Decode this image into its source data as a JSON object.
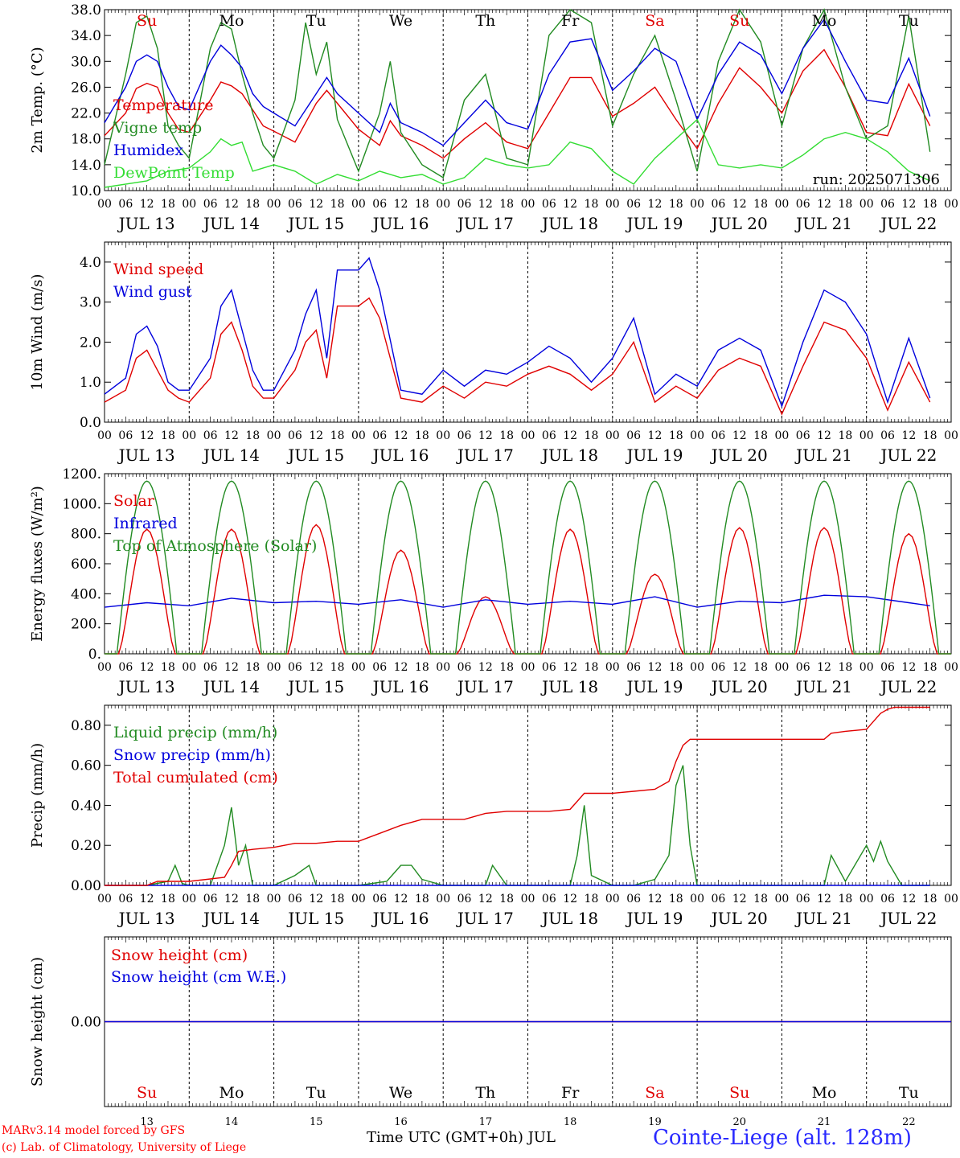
{
  "days": {
    "short": [
      "Su",
      "Mo",
      "Tu",
      "We",
      "Th",
      "Fr",
      "Sa",
      "Su",
      "Mo",
      "Tu"
    ],
    "colors": [
      "#e00000",
      "#000000",
      "#000000",
      "#000000",
      "#000000",
      "#000000",
      "#e00000",
      "#e00000",
      "#000000",
      "#000000"
    ],
    "dates": [
      "JUL 13",
      "JUL 14",
      "JUL 15",
      "JUL 16",
      "JUL 17",
      "JUL 18",
      "JUL 19",
      "JUL 20",
      "JUL 21",
      "JUL 22"
    ],
    "numbers": [
      "13",
      "14",
      "15",
      "16",
      "17",
      "18",
      "19",
      "20",
      "21",
      "22"
    ],
    "hour_labels": [
      "00",
      "06",
      "12",
      "18"
    ],
    "final_hour_label": "00"
  },
  "footer": {
    "model": "MARv3.14 model forced by GFS",
    "lab": "(c) Lab. of Climatology, University of Liege",
    "time_axis": "Time UTC (GMT+0h) JUL",
    "station": "Cointe-Liege (alt. 128m)"
  },
  "chart_data": [
    {
      "type": "line",
      "ylabel": "2m Temp. (°C)",
      "ylim": [
        10,
        38
      ],
      "yticks": [
        "10.0",
        "14.0",
        "18.0",
        "22.0",
        "26.0",
        "30.0",
        "34.0",
        "38.0"
      ],
      "annotation": "run: 2025071306",
      "x_unit": "hours since 2025-07-13 00 UTC",
      "series": [
        {
          "name": "Temperature",
          "color": "#e00000",
          "x": [
            0,
            6,
            9,
            12,
            15,
            18,
            21,
            24,
            30,
            33,
            36,
            39,
            42,
            45,
            48,
            54,
            60,
            63,
            66,
            72,
            78,
            81,
            84,
            90,
            96,
            102,
            108,
            114,
            120,
            126,
            132,
            138,
            144,
            150,
            156,
            162,
            168,
            174,
            180,
            186,
            192,
            198,
            204,
            210,
            216,
            222,
            228,
            234
          ],
          "y": [
            18.5,
            22,
            25.8,
            26.6,
            26,
            22,
            19.5,
            19,
            24,
            26.8,
            26.2,
            25,
            22.5,
            20,
            19.2,
            17.5,
            23.5,
            25.5,
            23.5,
            19.5,
            17,
            20.8,
            18.5,
            17,
            15,
            18,
            20.5,
            17.5,
            16.5,
            22,
            27.5,
            27.5,
            21.5,
            23.5,
            26,
            21,
            16.5,
            23.5,
            29,
            26,
            22,
            28.5,
            31.8,
            26,
            19,
            18.5,
            26.5,
            20
          ]
        },
        {
          "name": "Vigne temp",
          "color": "#228b22",
          "x": [
            0,
            6,
            9,
            12,
            15,
            18,
            21,
            24,
            30,
            33,
            36,
            39,
            42,
            45,
            48,
            54,
            57,
            60,
            63,
            66,
            72,
            78,
            81,
            84,
            90,
            96,
            102,
            108,
            114,
            120,
            126,
            132,
            138,
            144,
            150,
            156,
            162,
            168,
            174,
            180,
            186,
            192,
            198,
            204,
            210,
            216,
            222,
            228,
            234
          ],
          "y": [
            14,
            28,
            36,
            37,
            32,
            20,
            17,
            15,
            32,
            36,
            35,
            28,
            22,
            17,
            15,
            24,
            36,
            28,
            33,
            21,
            13,
            22,
            30,
            19,
            14,
            12,
            24,
            28,
            15,
            14,
            34,
            38,
            36,
            20,
            28,
            34,
            24,
            13,
            30,
            38,
            33,
            20,
            32,
            38,
            26,
            18,
            20,
            37,
            16
          ]
        },
        {
          "name": "Humidex",
          "color": "#0000dd",
          "x": [
            0,
            6,
            9,
            12,
            15,
            18,
            21,
            24,
            30,
            33,
            36,
            39,
            42,
            45,
            48,
            54,
            60,
            63,
            66,
            72,
            78,
            81,
            84,
            90,
            96,
            102,
            108,
            114,
            120,
            126,
            132,
            138,
            144,
            150,
            156,
            162,
            168,
            174,
            180,
            186,
            192,
            198,
            204,
            210,
            216,
            222,
            228,
            234
          ],
          "y": [
            20.5,
            26,
            30,
            31,
            30,
            26,
            23,
            22.5,
            30,
            32.5,
            31,
            29,
            25,
            23,
            22,
            20,
            25,
            27.5,
            25,
            22,
            19,
            23.5,
            20.5,
            19,
            17,
            20.5,
            24,
            20.5,
            19.5,
            28,
            33,
            33.5,
            25.5,
            28.5,
            32,
            30,
            21,
            28,
            33,
            31,
            25,
            32,
            36.5,
            30,
            24,
            23.5,
            30.5,
            21.5
          ]
        },
        {
          "name": "DewPoint Temp",
          "color": "#33dd33",
          "x": [
            0,
            12,
            18,
            24,
            30,
            33,
            36,
            39,
            42,
            48,
            54,
            60,
            66,
            72,
            78,
            84,
            90,
            96,
            102,
            108,
            114,
            120,
            126,
            132,
            138,
            144,
            150,
            156,
            162,
            168,
            174,
            180,
            186,
            192,
            198,
            204,
            210,
            216,
            222,
            228,
            234
          ],
          "y": [
            10.5,
            11.5,
            13,
            13.5,
            16,
            18,
            17,
            17.5,
            13,
            14,
            13,
            11,
            12.5,
            11.5,
            13,
            12,
            12.5,
            11,
            12,
            15,
            14,
            13.5,
            14,
            17.5,
            16.5,
            13,
            11,
            15,
            18,
            21,
            14,
            13.5,
            14,
            13.5,
            15.5,
            18,
            19,
            18,
            16,
            13,
            11.5
          ]
        }
      ]
    },
    {
      "type": "line",
      "ylabel": "10m Wind (m/s)",
      "ylim": [
        0,
        4.5
      ],
      "yticks": [
        "0.0",
        "1.0",
        "2.0",
        "3.0",
        "4.0"
      ],
      "x_unit": "hours since 2025-07-13 00 UTC",
      "series": [
        {
          "name": "Wind speed",
          "color": "#e00000",
          "x": [
            0,
            6,
            9,
            12,
            15,
            18,
            21,
            24,
            30,
            33,
            36,
            39,
            42,
            45,
            48,
            54,
            57,
            60,
            63,
            66,
            72,
            75,
            78,
            84,
            90,
            96,
            102,
            108,
            114,
            120,
            126,
            132,
            138,
            144,
            150,
            156,
            162,
            168,
            174,
            180,
            186,
            192,
            198,
            204,
            210,
            216,
            222,
            228,
            234
          ],
          "y": [
            0.5,
            0.8,
            1.6,
            1.8,
            1.3,
            0.8,
            0.6,
            0.5,
            1.1,
            2.2,
            2.5,
            1.8,
            0.9,
            0.6,
            0.6,
            1.3,
            2.0,
            2.3,
            1.1,
            2.9,
            2.9,
            3.1,
            2.6,
            0.6,
            0.5,
            0.9,
            0.6,
            1.0,
            0.9,
            1.2,
            1.4,
            1.2,
            0.8,
            1.2,
            2.0,
            0.5,
            0.9,
            0.6,
            1.3,
            1.6,
            1.4,
            0.2,
            1.4,
            2.5,
            2.3,
            1.6,
            0.3,
            1.5,
            0.5
          ]
        },
        {
          "name": "Wind gust",
          "color": "#0000dd",
          "x": [
            0,
            6,
            9,
            12,
            15,
            18,
            21,
            24,
            30,
            33,
            36,
            39,
            42,
            45,
            48,
            54,
            57,
            60,
            63,
            66,
            72,
            75,
            78,
            84,
            90,
            96,
            102,
            108,
            114,
            120,
            126,
            132,
            138,
            144,
            150,
            156,
            162,
            168,
            174,
            180,
            186,
            192,
            198,
            204,
            210,
            216,
            222,
            228,
            234
          ],
          "y": [
            0.7,
            1.1,
            2.2,
            2.4,
            1.9,
            1.0,
            0.8,
            0.8,
            1.6,
            2.9,
            3.3,
            2.3,
            1.3,
            0.8,
            0.8,
            1.8,
            2.7,
            3.3,
            1.6,
            3.8,
            3.8,
            4.1,
            3.3,
            0.8,
            0.7,
            1.3,
            0.9,
            1.3,
            1.2,
            1.5,
            1.9,
            1.6,
            1.0,
            1.6,
            2.6,
            0.7,
            1.2,
            0.9,
            1.8,
            2.1,
            1.8,
            0.4,
            2.0,
            3.3,
            3.0,
            2.2,
            0.5,
            2.1,
            0.6
          ]
        }
      ]
    },
    {
      "type": "line",
      "ylabel": "Energy fluxes (W/m²)",
      "ylim": [
        0,
        1200
      ],
      "yticks": [
        "0.",
        "200.",
        "400.",
        "600.",
        "800.",
        "1000.",
        "1200."
      ],
      "x_unit": "hours since 2025-07-13 00 UTC",
      "series": [
        {
          "name": "Solar",
          "color": "#e00000",
          "peaks": [
            830,
            830,
            860,
            690,
            380,
            830,
            530,
            840,
            840,
            800
          ]
        },
        {
          "name": "Infrared",
          "color": "#0000dd",
          "x": [
            0,
            12,
            24,
            36,
            48,
            60,
            72,
            84,
            96,
            108,
            120,
            132,
            144,
            156,
            168,
            180,
            192,
            204,
            216,
            228,
            234
          ],
          "y": [
            310,
            340,
            320,
            370,
            340,
            350,
            330,
            360,
            310,
            360,
            330,
            350,
            330,
            380,
            310,
            350,
            340,
            390,
            380,
            340,
            320
          ]
        },
        {
          "name": "Top of Atmosphere (Solar)",
          "color": "#228b22",
          "peak": 1150
        }
      ]
    },
    {
      "type": "line",
      "ylabel": "Precip (mm/h)",
      "ylim": [
        0,
        0.9
      ],
      "yticks": [
        "0.00",
        "0.20",
        "0.40",
        "0.60",
        "0.80"
      ],
      "x_unit": "hours since 2025-07-13 00 UTC",
      "series": [
        {
          "name": "Liquid precip (mm/h)",
          "color": "#228b22",
          "x": [
            0,
            12,
            18,
            20,
            22,
            24,
            30,
            34,
            36,
            38,
            40,
            42,
            48,
            54,
            58,
            60,
            62,
            66,
            72,
            80,
            84,
            87,
            90,
            96,
            102,
            108,
            110,
            114,
            120,
            132,
            134,
            136,
            138,
            144,
            150,
            156,
            160,
            162,
            164,
            166,
            168,
            174,
            180,
            192,
            204,
            206,
            210,
            216,
            218,
            220,
            222,
            226,
            234
          ],
          "y": [
            0,
            0,
            0.02,
            0.1,
            0.01,
            0,
            0,
            0.2,
            0.39,
            0.1,
            0.2,
            0,
            0,
            0.05,
            0.1,
            0,
            0,
            0,
            0,
            0.02,
            0.1,
            0.1,
            0.03,
            0,
            0,
            0,
            0.1,
            0,
            0,
            0,
            0.15,
            0.4,
            0.05,
            0,
            0,
            0.03,
            0.15,
            0.5,
            0.6,
            0.2,
            0,
            0,
            0,
            0,
            0,
            0.15,
            0.02,
            0.2,
            0.12,
            0.22,
            0.12,
            0,
            0
          ]
        },
        {
          "name": "Snow precip (mm/h)",
          "color": "#0000dd",
          "x": [
            0,
            234
          ],
          "y": [
            0,
            0
          ]
        },
        {
          "name": "Total cumulated (cm)",
          "color": "#e00000",
          "x": [
            0,
            12,
            15,
            24,
            34,
            36,
            38,
            42,
            48,
            54,
            60,
            66,
            72,
            78,
            84,
            90,
            96,
            102,
            108,
            114,
            120,
            126,
            132,
            134,
            136,
            140,
            144,
            150,
            156,
            160,
            162,
            164,
            166,
            168,
            174,
            180,
            192,
            204,
            206,
            210,
            216,
            218,
            220,
            222,
            224,
            234
          ],
          "y": [
            0,
            0,
            0.02,
            0.02,
            0.04,
            0.1,
            0.17,
            0.18,
            0.19,
            0.21,
            0.21,
            0.22,
            0.22,
            0.26,
            0.3,
            0.33,
            0.33,
            0.33,
            0.36,
            0.37,
            0.37,
            0.37,
            0.38,
            0.42,
            0.46,
            0.46,
            0.46,
            0.47,
            0.48,
            0.52,
            0.62,
            0.7,
            0.73,
            0.73,
            0.73,
            0.73,
            0.73,
            0.73,
            0.76,
            0.77,
            0.78,
            0.82,
            0.86,
            0.88,
            0.89,
            0.89
          ]
        }
      ]
    },
    {
      "type": "line",
      "ylabel": "Snow height (cm)",
      "ylim": [
        -1,
        1
      ],
      "yticks": [
        "0.00"
      ],
      "x_unit": "hours since 2025-07-13 00 UTC",
      "series": [
        {
          "name": "Snow height (cm)",
          "color": "#e00000",
          "x": [
            0,
            240
          ],
          "y": [
            0,
            0
          ]
        },
        {
          "name": "Snow height (cm W.E.)",
          "color": "#0000dd",
          "x": [
            0,
            240
          ],
          "y": [
            0,
            0
          ]
        }
      ]
    }
  ]
}
